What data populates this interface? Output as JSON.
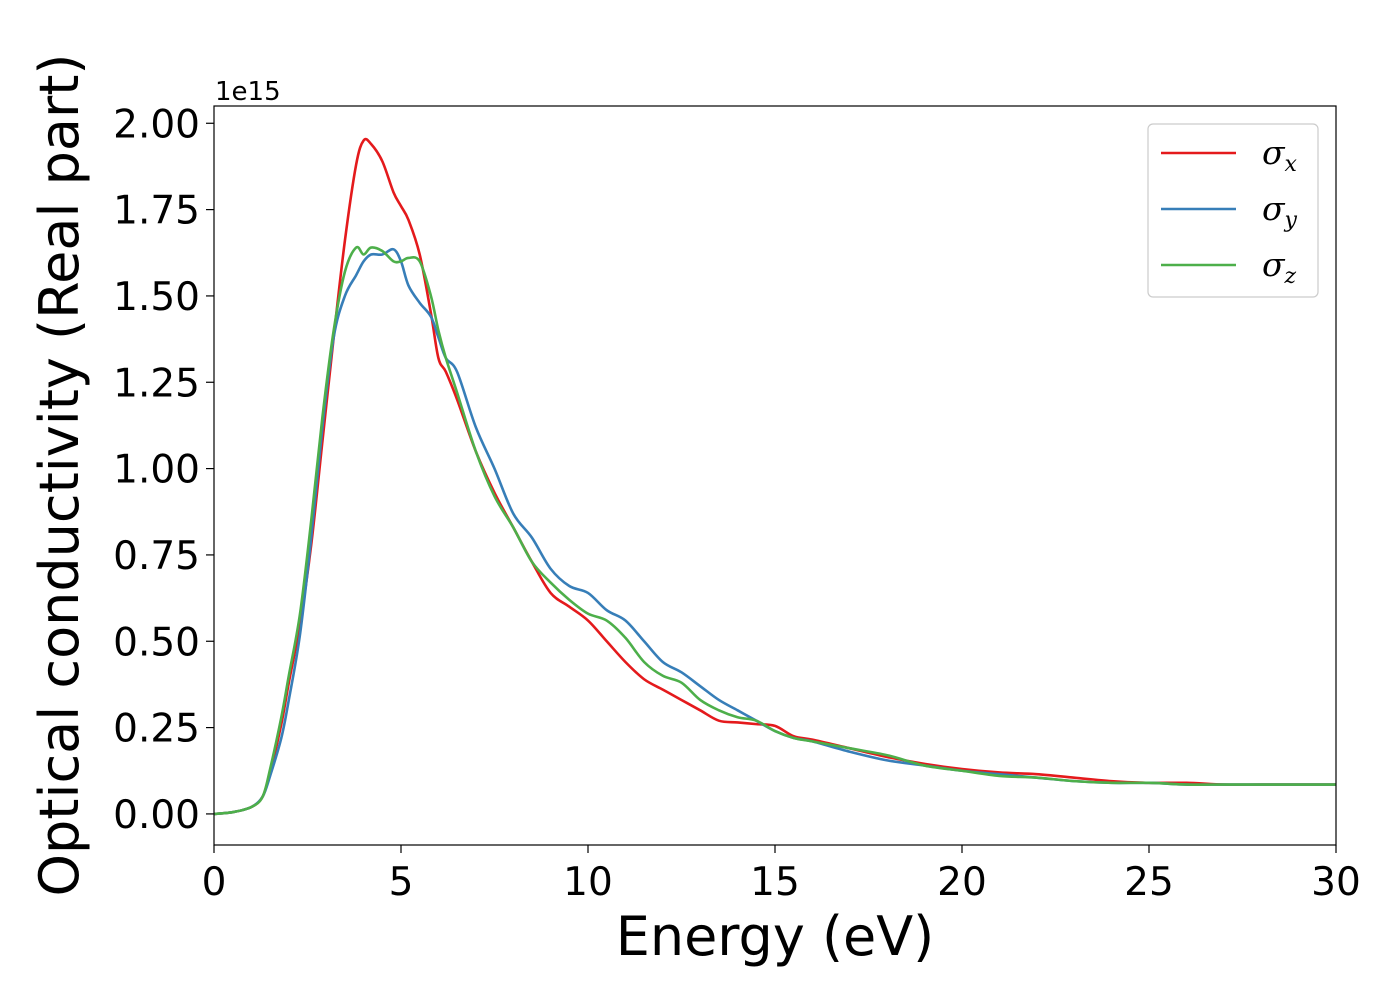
{
  "chart_data": {
    "type": "line",
    "xlabel": "Energy (eV)",
    "ylabel": "Optical conductivity (Real part)",
    "y_offset_label": "1e15",
    "xlim": [
      0,
      30
    ],
    "ylim": [
      -0.09,
      2.05
    ],
    "y_scale": 1000000000000000.0,
    "x_ticks": [
      0,
      5,
      10,
      15,
      20,
      25,
      30
    ],
    "x_tick_labels": [
      "0",
      "5",
      "10",
      "15",
      "20",
      "25",
      "30"
    ],
    "y_ticks": [
      0.0,
      0.25,
      0.5,
      0.75,
      1.0,
      1.25,
      1.5,
      1.75,
      2.0
    ],
    "y_tick_labels": [
      "0.00",
      "0.25",
      "0.50",
      "0.75",
      "1.00",
      "1.25",
      "1.50",
      "1.75",
      "2.00"
    ],
    "grid": false,
    "legend_position": "top-right",
    "series": [
      {
        "name": "σx",
        "symbol": "σ",
        "subscript": "x",
        "color": "#e41a1c",
        "x": [
          0,
          0.5,
          1.0,
          1.3,
          1.5,
          1.8,
          2.0,
          2.3,
          2.6,
          2.9,
          3.2,
          3.5,
          3.8,
          4.0,
          4.2,
          4.5,
          4.8,
          5.0,
          5.2,
          5.5,
          5.8,
          6.0,
          6.2,
          6.5,
          7.0,
          7.5,
          8.0,
          8.5,
          9.0,
          9.5,
          10.0,
          10.5,
          11.0,
          11.5,
          12.0,
          12.5,
          13.0,
          13.5,
          14.0,
          14.5,
          15.0,
          15.5,
          16.0,
          17.0,
          18.0,
          19.0,
          20.0,
          21.0,
          22.0,
          23.0,
          24.0,
          25.0,
          26.0,
          27.0,
          28.0,
          29.0,
          30.0
        ],
        "values": [
          0.0,
          0.005,
          0.02,
          0.05,
          0.12,
          0.26,
          0.38,
          0.55,
          0.78,
          1.08,
          1.38,
          1.66,
          1.88,
          1.95,
          1.94,
          1.89,
          1.8,
          1.76,
          1.72,
          1.62,
          1.45,
          1.32,
          1.28,
          1.2,
          1.05,
          0.93,
          0.83,
          0.73,
          0.64,
          0.6,
          0.56,
          0.5,
          0.44,
          0.39,
          0.36,
          0.33,
          0.3,
          0.27,
          0.265,
          0.26,
          0.255,
          0.225,
          0.215,
          0.19,
          0.165,
          0.145,
          0.13,
          0.12,
          0.115,
          0.105,
          0.095,
          0.09,
          0.09,
          0.085,
          0.085,
          0.085,
          0.085
        ]
      },
      {
        "name": "σy",
        "symbol": "σ",
        "subscript": "y",
        "color": "#377eb8",
        "x": [
          0,
          0.5,
          1.0,
          1.3,
          1.5,
          1.8,
          2.0,
          2.3,
          2.6,
          2.9,
          3.2,
          3.5,
          3.8,
          4.0,
          4.2,
          4.5,
          4.8,
          5.0,
          5.2,
          5.5,
          5.8,
          6.0,
          6.2,
          6.5,
          7.0,
          7.5,
          8.0,
          8.5,
          9.0,
          9.5,
          10.0,
          10.5,
          11.0,
          11.5,
          12.0,
          12.5,
          13.0,
          13.5,
          14.0,
          14.5,
          15.0,
          15.5,
          16.0,
          17.0,
          18.0,
          19.0,
          20.0,
          21.0,
          22.0,
          23.0,
          24.0,
          25.0,
          26.0,
          27.0,
          28.0,
          29.0,
          30.0
        ],
        "values": [
          0.0,
          0.005,
          0.02,
          0.05,
          0.11,
          0.22,
          0.33,
          0.52,
          0.8,
          1.12,
          1.38,
          1.5,
          1.56,
          1.6,
          1.62,
          1.62,
          1.635,
          1.6,
          1.53,
          1.48,
          1.44,
          1.38,
          1.32,
          1.28,
          1.12,
          1.0,
          0.87,
          0.8,
          0.71,
          0.66,
          0.64,
          0.59,
          0.56,
          0.5,
          0.44,
          0.41,
          0.37,
          0.33,
          0.3,
          0.27,
          0.24,
          0.22,
          0.21,
          0.18,
          0.155,
          0.14,
          0.125,
          0.115,
          0.105,
          0.095,
          0.09,
          0.09,
          0.085,
          0.085,
          0.085,
          0.085,
          0.085
        ]
      },
      {
        "name": "σz",
        "symbol": "σ",
        "subscript": "z",
        "color": "#4daf4a",
        "x": [
          0,
          0.5,
          1.0,
          1.3,
          1.5,
          1.8,
          2.0,
          2.3,
          2.6,
          2.9,
          3.2,
          3.5,
          3.8,
          4.0,
          4.2,
          4.5,
          4.8,
          5.0,
          5.2,
          5.5,
          5.8,
          6.0,
          6.2,
          6.5,
          7.0,
          7.5,
          8.0,
          8.5,
          9.0,
          9.5,
          10.0,
          10.5,
          11.0,
          11.5,
          12.0,
          12.5,
          13.0,
          13.5,
          14.0,
          14.5,
          15.0,
          15.5,
          16.0,
          17.0,
          18.0,
          19.0,
          20.0,
          21.0,
          22.0,
          23.0,
          24.0,
          25.0,
          26.0,
          27.0,
          28.0,
          29.0,
          30.0
        ],
        "values": [
          0.0,
          0.005,
          0.02,
          0.05,
          0.13,
          0.28,
          0.4,
          0.58,
          0.85,
          1.15,
          1.4,
          1.57,
          1.64,
          1.62,
          1.64,
          1.63,
          1.6,
          1.6,
          1.61,
          1.6,
          1.5,
          1.4,
          1.32,
          1.22,
          1.05,
          0.92,
          0.83,
          0.73,
          0.67,
          0.62,
          0.58,
          0.56,
          0.51,
          0.44,
          0.4,
          0.38,
          0.33,
          0.3,
          0.28,
          0.27,
          0.24,
          0.22,
          0.21,
          0.19,
          0.17,
          0.14,
          0.125,
          0.11,
          0.105,
          0.095,
          0.09,
          0.09,
          0.085,
          0.085,
          0.085,
          0.085,
          0.085
        ]
      }
    ]
  }
}
